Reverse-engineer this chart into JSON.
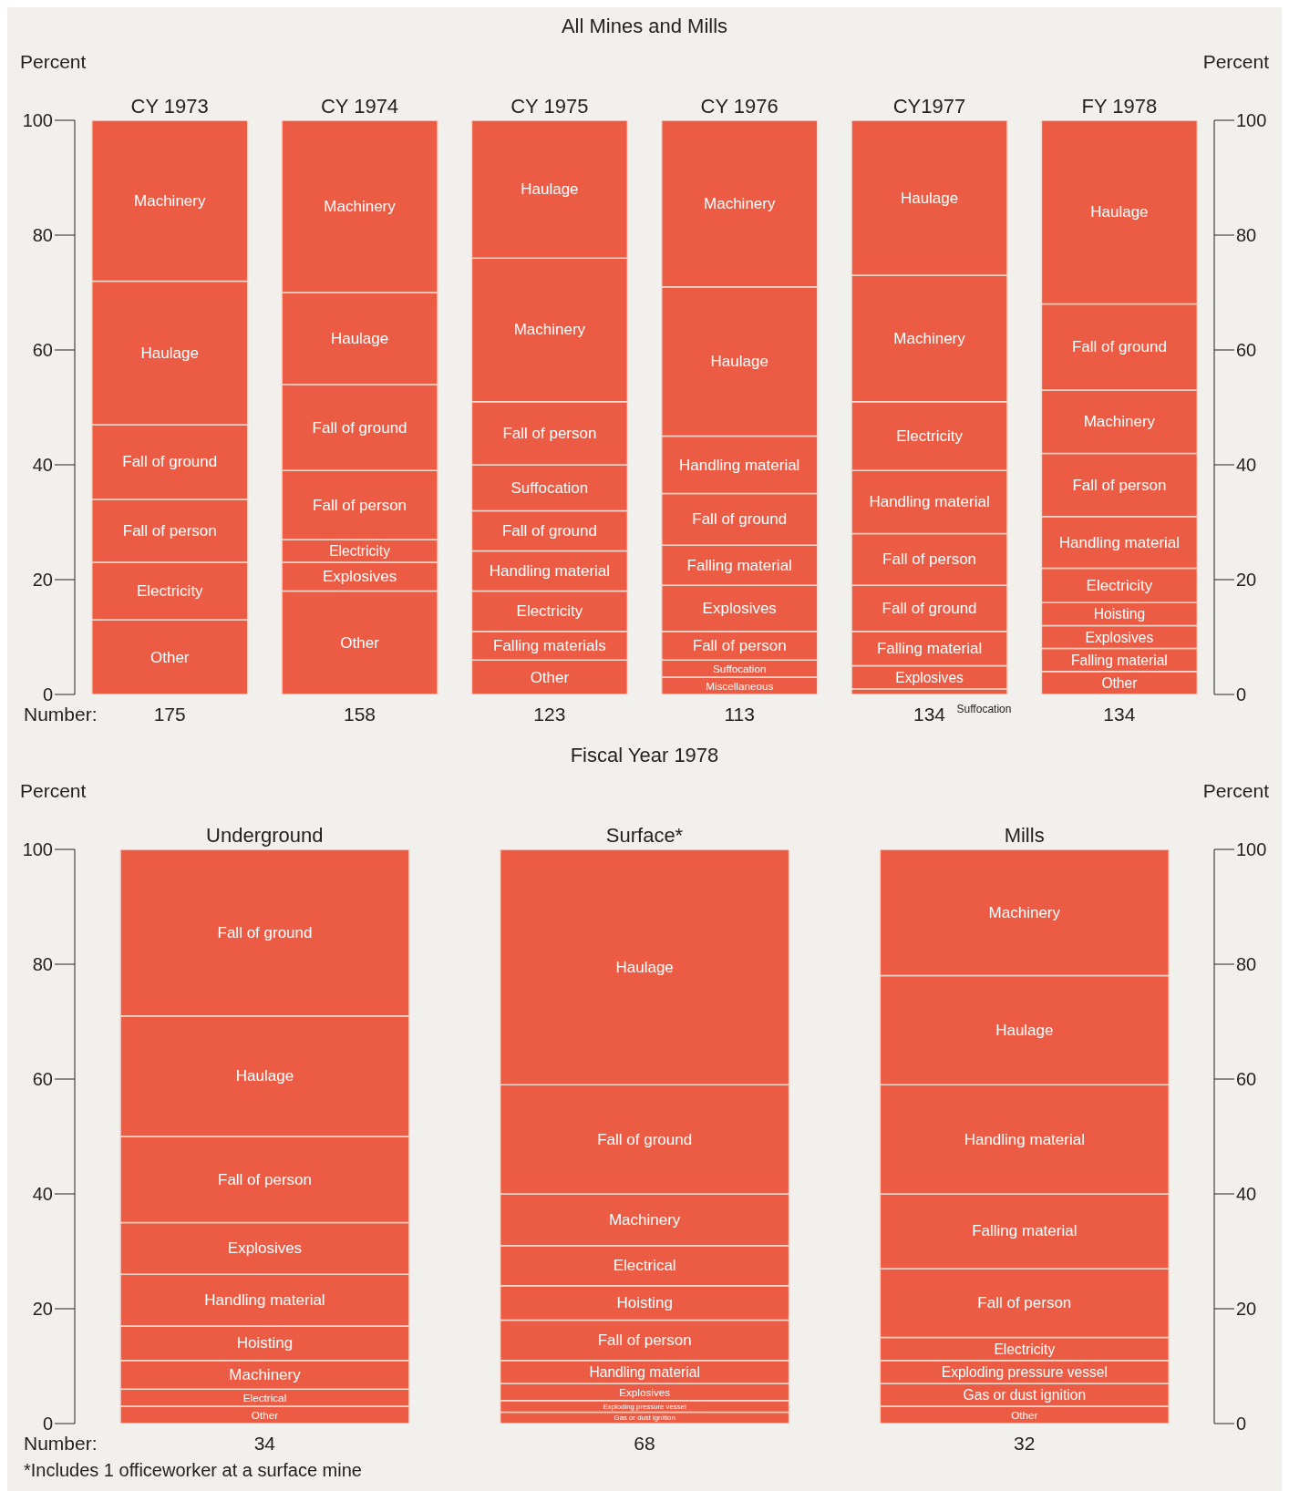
{
  "chart_data": [
    {
      "type": "bar",
      "stacked": true,
      "title": "All Mines and Mills",
      "categories": [
        "CY 1973",
        "CY 1974",
        "CY 1975",
        "CY 1976",
        "CY1977",
        "FY 1978"
      ],
      "ylabel": "Percent",
      "y2label": "Percent",
      "ylim": [
        0,
        100
      ],
      "yticks": [
        0,
        20,
        40,
        60,
        80,
        100
      ],
      "y2lim": [
        0,
        100
      ],
      "y2ticks": [
        0,
        20,
        40,
        60,
        80,
        100
      ],
      "series": [
        {
          "color": "#ec5c45",
          "values": [
            13,
            18,
            6,
            3,
            1,
            4
          ],
          "value_labels": [
            "Other",
            "Other",
            "Other",
            "Miscellaneous",
            "Suffocation",
            "Other"
          ]
        },
        {
          "color": "#ec5c45",
          "values": [
            10,
            5,
            5,
            3,
            4,
            4
          ],
          "value_labels": [
            "Electricity",
            "Explosives",
            "Falling materials",
            "Suffocation",
            "Explosives",
            "Falling material"
          ]
        },
        {
          "color": "#ec5c45",
          "values": [
            11,
            4,
            7,
            5,
            6,
            4
          ],
          "value_labels": [
            "Fall of person",
            "Electricity",
            "Electricity",
            "Fall of person",
            "Falling material",
            "Explosives"
          ]
        },
        {
          "color": "#ec5c45",
          "values": [
            13,
            12,
            7,
            8,
            8,
            4
          ],
          "value_labels": [
            "Fall of ground",
            "Fall of person",
            "Handling material",
            "Explosives",
            "Fall of ground",
            "Hoisting"
          ]
        },
        {
          "color": "#ec5c45",
          "values": [
            25,
            15,
            7,
            7,
            9,
            6
          ],
          "value_labels": [
            "Haulage",
            "Fall of ground",
            "Fall of ground",
            "Falling material",
            "Fall of person",
            "Electricity"
          ]
        },
        {
          "color": "#ec5c45",
          "values": [
            28,
            16,
            8,
            9,
            11,
            9
          ],
          "value_labels": [
            "Machinery",
            "Haulage",
            "Suffocation",
            "Fall of ground",
            "Handling material",
            "Handling material"
          ]
        },
        {
          "color": "#ec5c45",
          "values": [
            null,
            30,
            11,
            10,
            12,
            11
          ],
          "value_labels": [
            null,
            "Machinery",
            "Fall of person",
            "Handling material",
            "Electricity",
            "Fall of person"
          ]
        },
        {
          "color": "#ec5c45",
          "values": [
            null,
            null,
            25,
            26,
            22,
            11
          ],
          "value_labels": [
            null,
            null,
            "Machinery",
            "Haulage",
            "Machinery",
            "Machinery"
          ]
        },
        {
          "color": "#ec5c45",
          "values": [
            null,
            null,
            24,
            29,
            27,
            15
          ],
          "value_labels": [
            null,
            null,
            "Haulage",
            "Machinery",
            "Haulage",
            "Fall of ground"
          ]
        },
        {
          "color": "#ec5c45",
          "values": [
            null,
            null,
            null,
            null,
            null,
            32
          ],
          "value_labels": [
            null,
            null,
            null,
            null,
            null,
            "Haulage"
          ]
        }
      ],
      "annotations": [
        "Number:",
        "175",
        "158",
        "123",
        "113",
        "134",
        "134"
      ]
    },
    {
      "type": "bar",
      "stacked": true,
      "title": "Fiscal Year 1978",
      "categories": [
        "Underground",
        "Surface*",
        "Mills"
      ],
      "ylabel": "Percent",
      "y2label": "Percent",
      "ylim": [
        0,
        100
      ],
      "yticks": [
        0,
        20,
        40,
        60,
        80,
        100
      ],
      "y2lim": [
        0,
        100
      ],
      "y2ticks": [
        0,
        20,
        40,
        60,
        80,
        100
      ],
      "series": [
        {
          "color": "#ec5c45",
          "values": [
            3,
            2,
            3
          ],
          "value_labels": [
            "Other",
            "Gas or dust ignition",
            "Other"
          ]
        },
        {
          "color": "#ec5c45",
          "values": [
            3,
            2,
            4
          ],
          "value_labels": [
            "Electrical",
            "Exploding pressure vessel",
            "Gas or dust ignition"
          ]
        },
        {
          "color": "#ec5c45",
          "values": [
            5,
            3,
            4
          ],
          "value_labels": [
            "Machinery",
            "Explosives",
            "Exploding pressure vessel"
          ]
        },
        {
          "color": "#ec5c45",
          "values": [
            6,
            4,
            4
          ],
          "value_labels": [
            "Hoisting",
            "Handling material",
            "Electricity"
          ]
        },
        {
          "color": "#ec5c45",
          "values": [
            9,
            7,
            12
          ],
          "value_labels": [
            "Handling material",
            "Fall of person",
            "Fall of person"
          ]
        },
        {
          "color": "#ec5c45",
          "values": [
            9,
            6,
            13
          ],
          "value_labels": [
            "Explosives",
            "Hoisting",
            "Falling material"
          ]
        },
        {
          "color": "#ec5c45",
          "values": [
            15,
            7,
            19
          ],
          "value_labels": [
            "Fall of person",
            "Electrical",
            "Handling material"
          ]
        },
        {
          "color": "#ec5c45",
          "values": [
            21,
            9,
            19
          ],
          "value_labels": [
            "Haulage",
            "Machinery",
            "Haulage"
          ]
        },
        {
          "color": "#ec5c45",
          "values": [
            29,
            19,
            22
          ],
          "value_labels": [
            "Fall of ground",
            "Fall of ground",
            "Machinery"
          ]
        },
        {
          "color": "#ec5c45",
          "values": [
            null,
            41,
            null
          ],
          "value_labels": [
            null,
            "Haulage",
            null
          ]
        }
      ],
      "annotations": [
        "Number:",
        "34",
        "68",
        "32",
        "*Includes 1 officeworker at a surface mine"
      ]
    }
  ]
}
